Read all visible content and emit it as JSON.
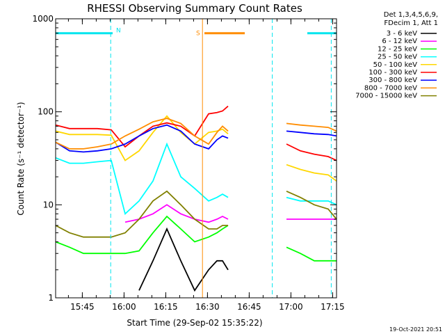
{
  "chart_data": {
    "type": "line",
    "title": "RHESSI Observing Summary Count Rates",
    "xlabel": "Start Time (29-Sep-02 15:35:22)",
    "ylabel": "Count Rate (s⁻¹ detector⁻¹)",
    "y_scale": "log",
    "ylim": [
      1,
      1000
    ],
    "y_ticks": [
      {
        "value": 1,
        "label": "1"
      },
      {
        "value": 10,
        "label": "10"
      },
      {
        "value": 100,
        "label": "100"
      },
      {
        "value": 1000,
        "label": "1000"
      }
    ],
    "xlim_minutes": [
      0,
      101
    ],
    "x_ticks": [
      {
        "minute": 9.6,
        "label": "15:45"
      },
      {
        "minute": 24.6,
        "label": "16:00"
      },
      {
        "minute": 39.6,
        "label": "16:15"
      },
      {
        "minute": 54.6,
        "label": "16:30"
      },
      {
        "minute": 69.6,
        "label": "16:45"
      },
      {
        "minute": 84.6,
        "label": "17:00"
      },
      {
        "minute": 99.6,
        "label": "17:15"
      }
    ],
    "legend_header": [
      "Det 1,3,4,5,6,9,",
      "FDecim 1, Att 1"
    ],
    "legend_position": "right",
    "grid": false,
    "annotations": [
      {
        "label": "N",
        "color": "#00e5ee",
        "x_start_minute": 0,
        "x_end_minute": 20.5,
        "y": 700
      },
      {
        "label": "S",
        "color": "#ff8c00",
        "x_start_minute": 53.5,
        "x_end_minute": 68,
        "y": 700
      },
      {
        "label": "",
        "color": "#00e5ee",
        "x_start_minute": 90.5,
        "x_end_minute": 101,
        "y": 700
      }
    ],
    "markers": [
      {
        "minute": 19.8,
        "color": "#00e5ee",
        "style": "dashed"
      },
      {
        "minute": 52.8,
        "color": "#ff8c00",
        "style": "solid"
      },
      {
        "minute": 77.9,
        "color": "#00e5ee",
        "style": "dashed"
      },
      {
        "minute": 99.1,
        "color": "#00e5ee",
        "style": "dashed"
      }
    ],
    "x_minutes": [
      0,
      5,
      10,
      15,
      20,
      25,
      30,
      35,
      40,
      45,
      50,
      55,
      58,
      60,
      62,
      83,
      88,
      93,
      98,
      101
    ],
    "gaps_after_minute": [
      62
    ],
    "series": [
      {
        "name": "3 - 6 keV",
        "color": "#000000",
        "values": [
          null,
          null,
          null,
          null,
          null,
          null,
          1.2,
          2.5,
          5.5,
          2.5,
          1.2,
          2.0,
          2.5,
          2.5,
          2.0,
          null,
          null,
          null,
          null,
          null
        ]
      },
      {
        "name": "6 - 12 keV",
        "color": "#ff00ff",
        "values": [
          null,
          null,
          null,
          null,
          null,
          6.5,
          7.0,
          8.0,
          10.0,
          8.0,
          7.0,
          6.5,
          7.0,
          7.5,
          7.0,
          7.0,
          7.0,
          7.0,
          7.0,
          7.0
        ]
      },
      {
        "name": "12 - 25 keV",
        "color": "#00ff00",
        "values": [
          4.0,
          3.5,
          3.0,
          3.0,
          3.0,
          3.0,
          3.2,
          5.0,
          7.5,
          5.5,
          4.0,
          4.5,
          5.0,
          5.5,
          6.0,
          3.5,
          3.0,
          2.5,
          2.5,
          2.5
        ]
      },
      {
        "name": "25 - 50 keV",
        "color": "#00ffff",
        "values": [
          32,
          28,
          28,
          29,
          30,
          8,
          11,
          18,
          45,
          20,
          15,
          11,
          12,
          13,
          12,
          12,
          11,
          11,
          11,
          10
        ]
      },
      {
        "name": "50 - 100 keV",
        "color": "#ffd700",
        "values": [
          62,
          57,
          57,
          57,
          56,
          30,
          38,
          60,
          90,
          60,
          45,
          60,
          62,
          65,
          58,
          27,
          24,
          22,
          21,
          18
        ]
      },
      {
        "name": "100 - 300 keV",
        "color": "#ff0000",
        "values": [
          72,
          66,
          66,
          66,
          64,
          42,
          55,
          70,
          76,
          70,
          55,
          95,
          98,
          102,
          115,
          45,
          38,
          35,
          33,
          30
        ]
      },
      {
        "name": "300 - 800 keV",
        "color": "#0000ff",
        "values": [
          47,
          38,
          37,
          38,
          40,
          45,
          55,
          66,
          72,
          62,
          45,
          40,
          50,
          55,
          52,
          62,
          60,
          58,
          57,
          55
        ]
      },
      {
        "name": "800 - 7000 keV",
        "color": "#ff8c00",
        "values": [
          47,
          40,
          40,
          42,
          45,
          55,
          65,
          78,
          85,
          75,
          55,
          45,
          60,
          70,
          62,
          75,
          72,
          70,
          68,
          62
        ]
      },
      {
        "name": "7000 - 15000 keV",
        "color": "#808000",
        "values": [
          6.0,
          5.0,
          4.5,
          4.5,
          4.5,
          5.0,
          7.0,
          11.0,
          14.0,
          10.0,
          7.0,
          5.5,
          5.5,
          6.0,
          6.0,
          14.0,
          12.0,
          10.0,
          9.0,
          7.0
        ]
      }
    ]
  },
  "footer": {
    "timestamp": "19-Oct-2021 20:51"
  }
}
